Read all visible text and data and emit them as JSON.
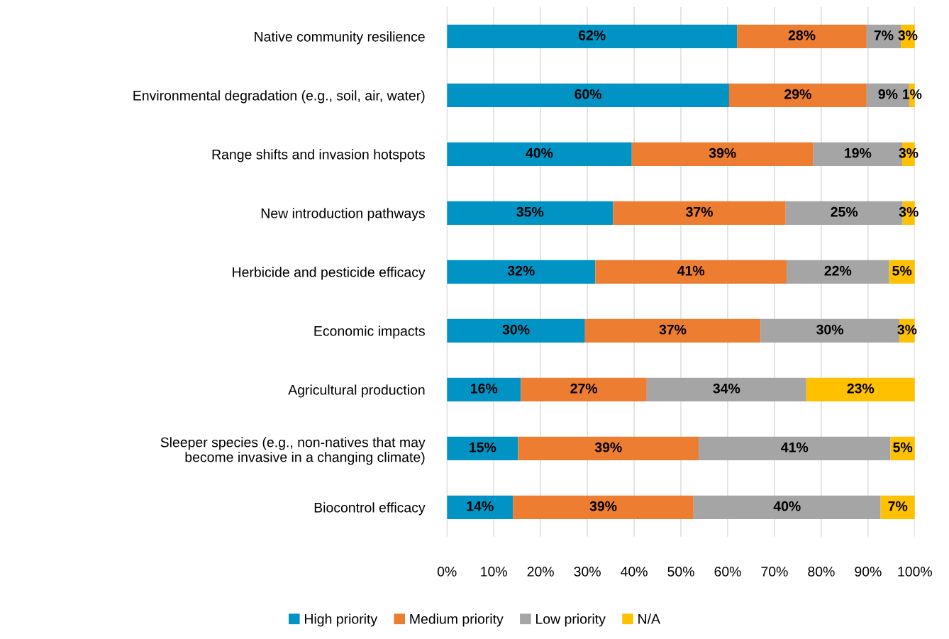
{
  "chart_data": {
    "type": "bar",
    "orientation": "horizontal",
    "stacked": true,
    "categories": [
      "Native community resilience",
      "Environmental degradation (e.g., soil, air, water)",
      "Range shifts and invasion hotspots",
      "New introduction pathways",
      "Herbicide and pesticide efficacy",
      "Economic impacts",
      "Agricultural production",
      "Sleeper species (e.g., non-natives that may\nbecome invasive in a changing climate)",
      "Biocontrol efficacy"
    ],
    "series": [
      {
        "name": "High priority",
        "color": "#0093c4",
        "values": [
          62.0,
          60.3,
          39.5,
          35.5,
          31.7,
          29.5,
          15.8,
          15.2,
          14.1
        ],
        "value_labels": [
          "62%",
          "60%",
          "40%",
          "35%",
          "32%",
          "30%",
          "16%",
          "15%",
          "14%"
        ]
      },
      {
        "name": "Medium priority",
        "color": "#ed7d31",
        "values": [
          27.7,
          29.4,
          38.8,
          36.9,
          40.9,
          37.5,
          26.9,
          38.6,
          38.6
        ],
        "value_labels": [
          "28%",
          "29%",
          "39%",
          "37%",
          "41%",
          "37%",
          "27%",
          "39%",
          "39%"
        ]
      },
      {
        "name": "Low priority",
        "color": "#a5a5a5",
        "values": [
          7.3,
          9.1,
          19.0,
          25.0,
          21.9,
          29.7,
          34.1,
          41.0,
          40.0
        ],
        "value_labels": [
          "7%",
          "9%",
          "19%",
          "25%",
          "22%",
          "30%",
          "34%",
          "41%",
          "40%"
        ]
      },
      {
        "name": "N/A",
        "color": "#ffc000",
        "values": [
          3.0,
          1.2,
          2.7,
          2.6,
          5.5,
          3.3,
          23.2,
          5.2,
          7.3
        ],
        "value_labels": [
          "3%",
          "1%",
          "3%",
          "3%",
          "5%",
          "3%",
          "23%",
          "5%",
          "7%"
        ]
      }
    ],
    "xlim": [
      0,
      100
    ],
    "xticks": [
      {
        "value": 0,
        "label": "0%"
      },
      {
        "value": 10,
        "label": "10%"
      },
      {
        "value": 20,
        "label": "20%"
      },
      {
        "value": 30,
        "label": "30%"
      },
      {
        "value": 40,
        "label": "40%"
      },
      {
        "value": 50,
        "label": "50%"
      },
      {
        "value": 60,
        "label": "60%"
      },
      {
        "value": 70,
        "label": "70%"
      },
      {
        "value": 80,
        "label": "80%"
      },
      {
        "value": 90,
        "label": "90%"
      },
      {
        "value": 100,
        "label": "100%"
      }
    ],
    "grid": "x",
    "legend": "bottom"
  }
}
